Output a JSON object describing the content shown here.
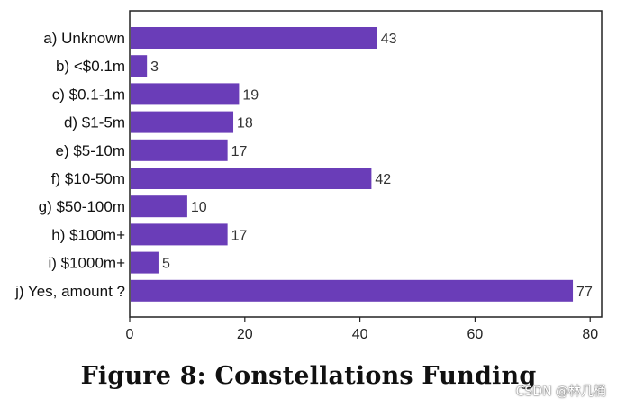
{
  "chart_data": {
    "type": "bar",
    "orientation": "horizontal",
    "categories": [
      "a)  Unknown",
      "b)  <$0.1m",
      "c)  $0.1-1m",
      "d)  $1-5m",
      "e)  $5-10m",
      "f)  $10-50m",
      "g)  $50-100m",
      "h)  $100m+",
      "i)  $1000m+",
      "j)  Yes, amount ?"
    ],
    "values": [
      43,
      3,
      19,
      18,
      17,
      42,
      10,
      17,
      5,
      77
    ],
    "xlim": [
      0,
      82
    ],
    "xticks": [
      0,
      20,
      40,
      60,
      80
    ],
    "title": "",
    "xlabel": "",
    "ylabel": "",
    "bar_color": "#6a3db8",
    "grid": false
  },
  "caption": "Figure 8:  Constellations Funding",
  "watermark": "CSDN @林几桶"
}
